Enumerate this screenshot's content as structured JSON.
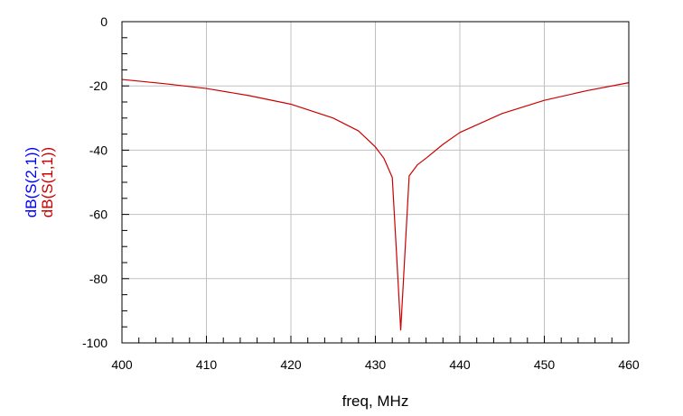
{
  "chart_data": {
    "type": "line",
    "title": "",
    "xlabel": "freq, MHz",
    "ylabels": [
      "dB(S(2,1))",
      "dB(S(1,1))"
    ],
    "xlim": [
      400,
      460
    ],
    "ylim": [
      -100,
      0
    ],
    "xticks": [
      400,
      410,
      420,
      430,
      440,
      450,
      460
    ],
    "yticks": [
      0,
      -20,
      -40,
      -60,
      -80,
      -100
    ],
    "x_minor_step": 2,
    "y_minor_step": 5,
    "grid": true,
    "legend": "none",
    "series": [
      {
        "name": "dB(S(1,1))",
        "color": "#cc0000",
        "x": [
          400,
          405,
          410,
          415,
          420,
          425,
          428,
          430,
          431,
          432,
          432.5,
          433,
          433.5,
          434,
          435,
          436,
          438,
          440,
          445,
          450,
          455,
          460
        ],
        "y": [
          -18,
          -19.3,
          -20.8,
          -23,
          -25.7,
          -30,
          -34,
          -39,
          -42.5,
          -48.5,
          -72,
          -96,
          -72,
          -48,
          -44.5,
          -42.5,
          -38.2,
          -34.5,
          -28.6,
          -24.5,
          -21.5,
          -19
        ]
      }
    ],
    "colors": {
      "s21": "#0000ff",
      "s11": "#cc0000",
      "grid": "#c0c0c0",
      "axis": "#000000"
    }
  }
}
